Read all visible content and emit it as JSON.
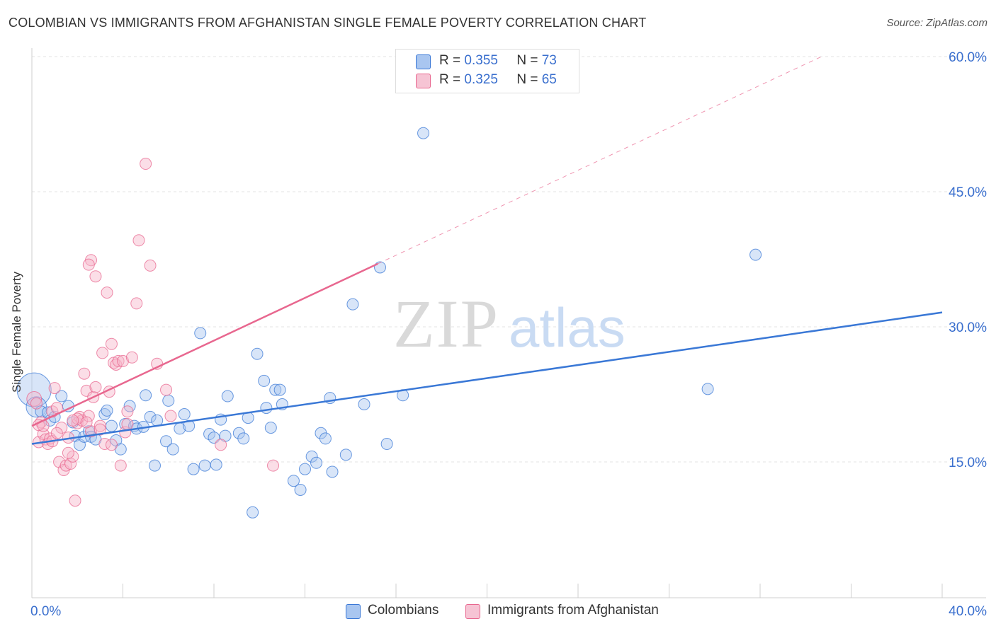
{
  "title": "COLOMBIAN VS IMMIGRANTS FROM AFGHANISTAN SINGLE FEMALE POVERTY CORRELATION CHART",
  "source": "Source: ZipAtlas.com",
  "watermark": {
    "zip": "ZIP",
    "atlas": "atlas"
  },
  "legend": {
    "series1": {
      "r_label": "R = ",
      "r_value": "0.355",
      "n_label": "N = ",
      "n_value": "73"
    },
    "series2": {
      "r_label": "R = ",
      "r_value": "0.325",
      "n_label": "N = ",
      "n_value": "65"
    }
  },
  "colors": {
    "blue": "#3a78d6",
    "blue_fill": "#a9c6f0",
    "pink": "#e8678f",
    "pink_fill": "#f6b6c9",
    "tick_text": "#3a6fce"
  },
  "chart_data": {
    "type": "scatter",
    "ylabel": "Single Female Poverty",
    "xlim": [
      0,
      40
    ],
    "ylim": [
      0,
      62
    ],
    "x_tick_labels": [
      "0.0%",
      "40.0%"
    ],
    "y_ticks": [
      15,
      30,
      45,
      60
    ],
    "y_tick_labels": [
      "15.0%",
      "30.0%",
      "45.0%",
      "60.0%"
    ],
    "grid": true,
    "legend_position": "top-center",
    "series": [
      {
        "name": "Colombians",
        "color": "#3a78d6",
        "trend": {
          "x": [
            0,
            40
          ],
          "y": [
            17.0,
            31.6
          ],
          "dashed": false
        },
        "points": [
          [
            0.1,
            23.0,
            3
          ],
          [
            0.2,
            21.1,
            1.8
          ],
          [
            0.4,
            20.6,
            1
          ],
          [
            0.7,
            20.5,
            1
          ],
          [
            0.8,
            19.6,
            1
          ],
          [
            1.0,
            20.0,
            1
          ],
          [
            1.3,
            22.3,
            1
          ],
          [
            1.6,
            21.2,
            1
          ],
          [
            1.8,
            19.4,
            1
          ],
          [
            1.9,
            17.9,
            1
          ],
          [
            2.1,
            16.9,
            1
          ],
          [
            2.3,
            17.8,
            1
          ],
          [
            2.5,
            18.4,
            1
          ],
          [
            2.6,
            17.8,
            1
          ],
          [
            2.8,
            17.5,
            1
          ],
          [
            3.2,
            20.3,
            1
          ],
          [
            3.3,
            20.7,
            1
          ],
          [
            3.5,
            19.0,
            1
          ],
          [
            3.7,
            17.4,
            1
          ],
          [
            3.9,
            16.4,
            1
          ],
          [
            4.1,
            19.2,
            1
          ],
          [
            4.3,
            21.2,
            1
          ],
          [
            4.5,
            19.0,
            1
          ],
          [
            4.6,
            18.7,
            1
          ],
          [
            4.9,
            18.9,
            1
          ],
          [
            5.0,
            22.4,
            1
          ],
          [
            5.2,
            20.0,
            1
          ],
          [
            5.5,
            19.6,
            1
          ],
          [
            5.4,
            14.6,
            1
          ],
          [
            5.9,
            17.3,
            1
          ],
          [
            6.0,
            21.8,
            1
          ],
          [
            6.2,
            16.4,
            1
          ],
          [
            6.5,
            18.7,
            1
          ],
          [
            6.7,
            20.3,
            1
          ],
          [
            6.9,
            19.0,
            1
          ],
          [
            7.1,
            14.2,
            1
          ],
          [
            7.4,
            29.3,
            1
          ],
          [
            7.6,
            14.6,
            1
          ],
          [
            7.8,
            18.1,
            1
          ],
          [
            8.0,
            17.7,
            1
          ],
          [
            8.1,
            14.7,
            1
          ],
          [
            8.3,
            19.7,
            1
          ],
          [
            8.5,
            17.9,
            1
          ],
          [
            8.6,
            22.3,
            1
          ],
          [
            9.1,
            18.2,
            1
          ],
          [
            9.3,
            17.6,
            1
          ],
          [
            9.5,
            19.9,
            1
          ],
          [
            9.7,
            9.4,
            1
          ],
          [
            9.9,
            27.0,
            1
          ],
          [
            10.2,
            24.0,
            1
          ],
          [
            10.3,
            21.0,
            1
          ],
          [
            10.5,
            18.8,
            1
          ],
          [
            10.7,
            23.0,
            1
          ],
          [
            10.9,
            23.0,
            1
          ],
          [
            11.0,
            21.4,
            1
          ],
          [
            11.5,
            12.9,
            1
          ],
          [
            11.8,
            11.9,
            1
          ],
          [
            12.0,
            14.2,
            1
          ],
          [
            12.3,
            15.6,
            1
          ],
          [
            12.5,
            14.9,
            1
          ],
          [
            12.7,
            18.2,
            1
          ],
          [
            12.9,
            17.6,
            1
          ],
          [
            13.1,
            22.1,
            1
          ],
          [
            13.2,
            13.9,
            1
          ],
          [
            13.8,
            15.8,
            1
          ],
          [
            14.1,
            32.5,
            1
          ],
          [
            14.6,
            21.4,
            1
          ],
          [
            15.3,
            36.6,
            1
          ],
          [
            15.6,
            17.0,
            1
          ],
          [
            16.3,
            22.4,
            1
          ],
          [
            17.2,
            51.5,
            1
          ],
          [
            29.7,
            23.1,
            1
          ],
          [
            31.8,
            38.0,
            1
          ]
        ]
      },
      {
        "name": "Immigrants from Afghanistan",
        "color": "#e8678f",
        "trend": {
          "x": [
            0,
            15.2
          ],
          "y": [
            19.0,
            37.0
          ],
          "dashed_to": [
            34.7,
            60.0
          ]
        },
        "points": [
          [
            0.1,
            22.0,
            1.3
          ],
          [
            0.2,
            21.5,
            1
          ],
          [
            0.3,
            17.2,
            1
          ],
          [
            0.4,
            19.4,
            1
          ],
          [
            0.5,
            18.1,
            1
          ],
          [
            0.6,
            17.5,
            1
          ],
          [
            0.7,
            17.0,
            1
          ],
          [
            0.8,
            17.6,
            1
          ],
          [
            0.9,
            20.6,
            1
          ],
          [
            1.0,
            23.2,
            1
          ],
          [
            1.1,
            21.0,
            1
          ],
          [
            1.2,
            15.0,
            1
          ],
          [
            1.3,
            18.8,
            1
          ],
          [
            1.4,
            14.1,
            1
          ],
          [
            1.5,
            14.6,
            1
          ],
          [
            1.6,
            17.7,
            1
          ],
          [
            1.7,
            14.8,
            1
          ],
          [
            1.8,
            15.6,
            1
          ],
          [
            1.9,
            10.7,
            1
          ],
          [
            2.0,
            19.3,
            1
          ],
          [
            2.1,
            20.0,
            1
          ],
          [
            2.2,
            19.6,
            1
          ],
          [
            2.3,
            24.8,
            1
          ],
          [
            2.4,
            22.9,
            1
          ],
          [
            2.5,
            20.1,
            1
          ],
          [
            2.6,
            18.4,
            1
          ],
          [
            2.6,
            37.4,
            1
          ],
          [
            2.5,
            36.9,
            1
          ],
          [
            2.7,
            22.2,
            1
          ],
          [
            2.8,
            23.3,
            1
          ],
          [
            2.8,
            35.6,
            1
          ],
          [
            3.0,
            19.0,
            1
          ],
          [
            3.1,
            27.1,
            1
          ],
          [
            3.2,
            17.0,
            1
          ],
          [
            3.3,
            33.8,
            1
          ],
          [
            3.4,
            22.8,
            1
          ],
          [
            3.5,
            28.1,
            1
          ],
          [
            3.6,
            26.0,
            1
          ],
          [
            3.7,
            25.8,
            1
          ],
          [
            3.8,
            26.2,
            1
          ],
          [
            3.9,
            14.6,
            1
          ],
          [
            4.0,
            26.2,
            1
          ],
          [
            4.1,
            18.3,
            1
          ],
          [
            4.2,
            20.6,
            1
          ],
          [
            4.4,
            26.6,
            1
          ],
          [
            4.6,
            32.6,
            1
          ],
          [
            4.7,
            39.6,
            1
          ],
          [
            5.0,
            48.1,
            1
          ],
          [
            5.2,
            36.8,
            1
          ],
          [
            5.5,
            25.9,
            1
          ],
          [
            5.9,
            23.0,
            1
          ],
          [
            6.1,
            20.1,
            1
          ],
          [
            0.3,
            19.1,
            1
          ],
          [
            0.9,
            17.3,
            1
          ],
          [
            1.6,
            16.0,
            1
          ],
          [
            2.0,
            19.8,
            1
          ],
          [
            2.4,
            19.4,
            1
          ],
          [
            3.0,
            18.6,
            1
          ],
          [
            3.5,
            16.9,
            1
          ],
          [
            4.2,
            19.2,
            1
          ],
          [
            8.3,
            16.9,
            1
          ],
          [
            10.6,
            14.6,
            1
          ],
          [
            0.5,
            19.0,
            1
          ],
          [
            1.1,
            18.2,
            1
          ],
          [
            1.8,
            19.6,
            1
          ]
        ]
      }
    ]
  }
}
